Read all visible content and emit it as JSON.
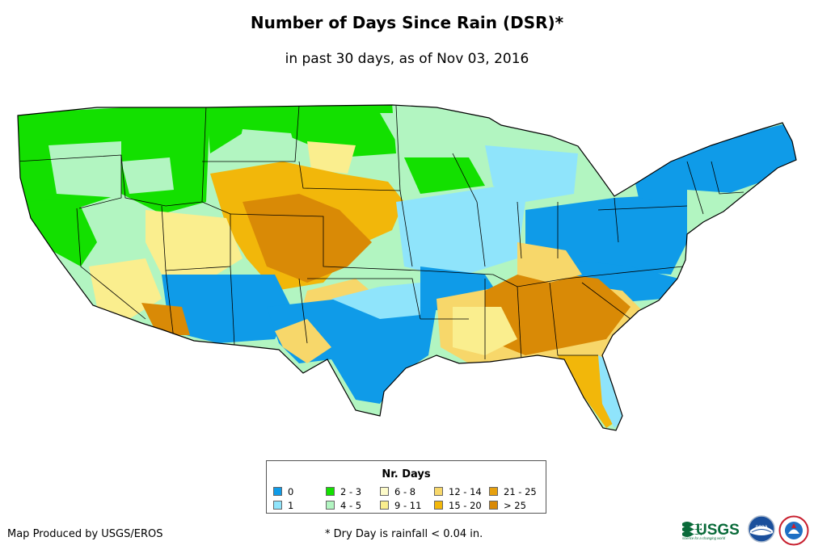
{
  "title": "Number of Days Since Rain (DSR)*",
  "subtitle": "in past 30 days, as of Nov 03, 2016",
  "legend": {
    "title": "Nr. Days",
    "classes": [
      {
        "label": "0",
        "color": "#0f9be8"
      },
      {
        "label": "1",
        "color": "#8fe4fb"
      },
      {
        "label": "2 - 3",
        "color": "#13e000"
      },
      {
        "label": "4 - 5",
        "color": "#b2f5c1"
      },
      {
        "label": "6 - 8",
        "color": "#fdfbc9"
      },
      {
        "label": "9 - 11",
        "color": "#faee8e"
      },
      {
        "label": "12 - 14",
        "color": "#f7d76a"
      },
      {
        "label": "15 - 20",
        "color": "#f2b70a"
      },
      {
        "label": "21 - 25",
        "color": "#e6a00e"
      },
      {
        "label": "> 25",
        "color": "#d98a06"
      }
    ]
  },
  "credit": "Map Produced by USGS/EROS",
  "footnote": "* Dry Day is rainfall < 0.04 in.",
  "logos": {
    "usgs": {
      "name": "usgs-logo",
      "text": "USGS",
      "tagline": "science for a changing world"
    },
    "noaa": {
      "name": "noaa-logo",
      "text": "noaa"
    },
    "nws": {
      "name": "nws-logo"
    }
  }
}
